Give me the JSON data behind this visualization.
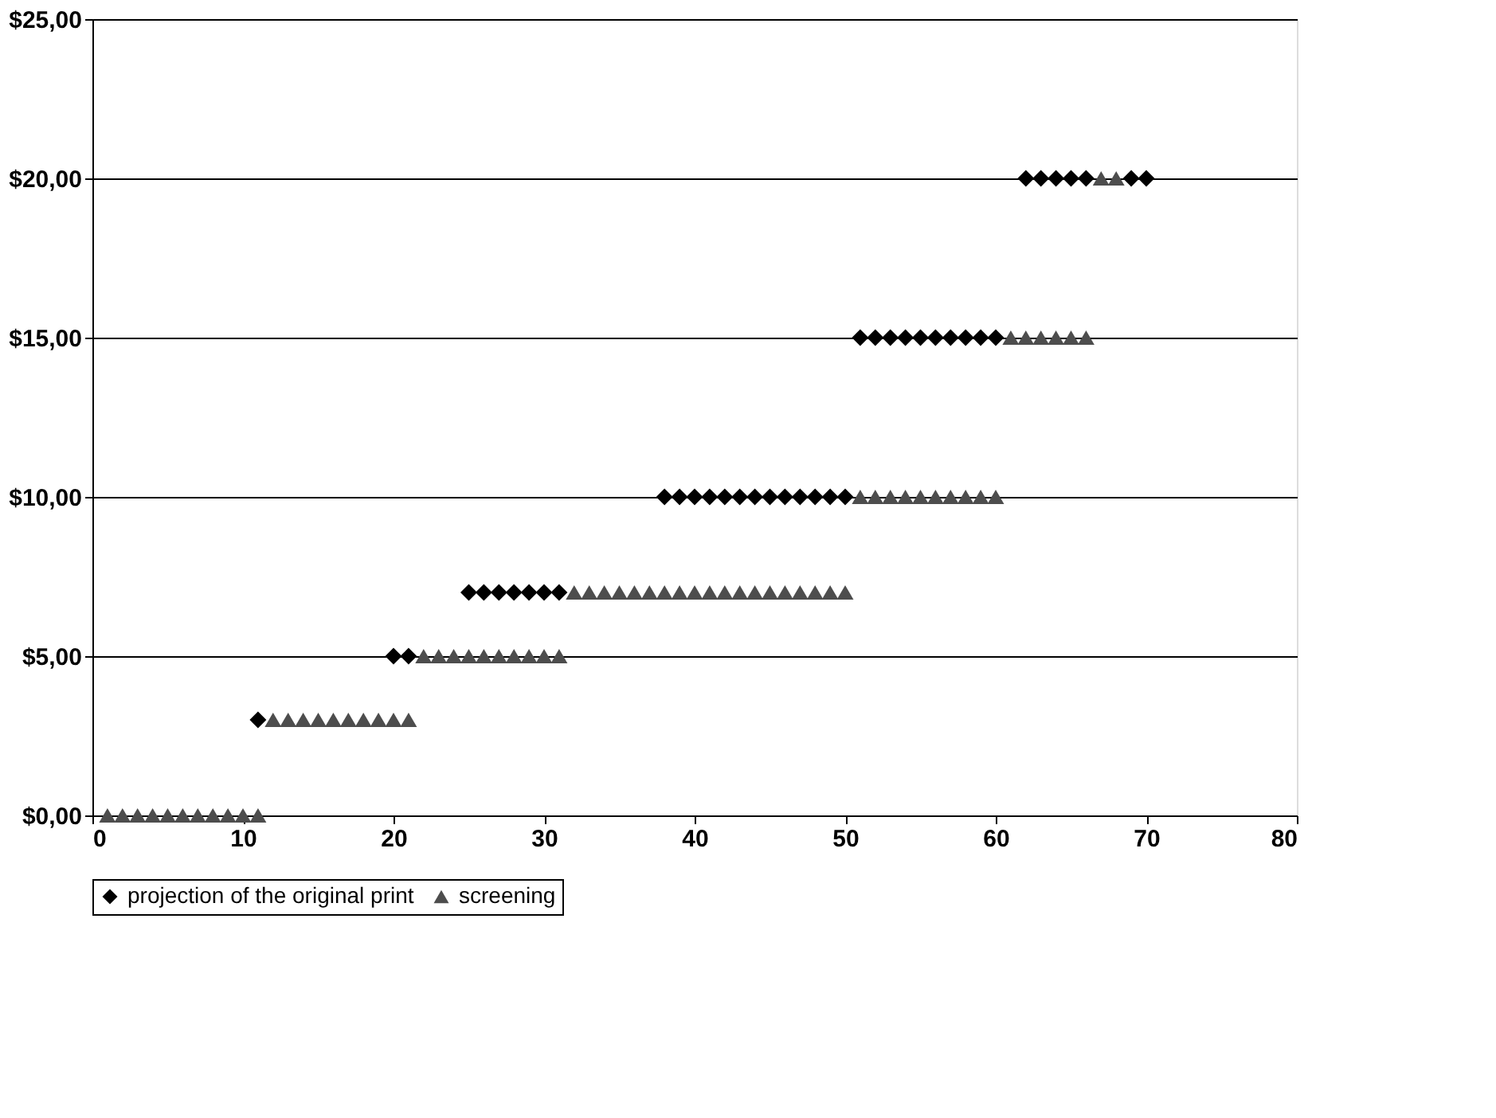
{
  "chart_data": {
    "type": "scatter",
    "xlim": [
      0,
      80
    ],
    "xticks": [
      0,
      10,
      20,
      30,
      40,
      50,
      60,
      70,
      80
    ],
    "ylim": [
      0,
      25
    ],
    "yticks": [
      {
        "value": 0,
        "label": "$0,00"
      },
      {
        "value": 5,
        "label": "$5,00"
      },
      {
        "value": 10,
        "label": "$10,00"
      },
      {
        "value": 15,
        "label": "$15,00"
      },
      {
        "value": 20,
        "label": "$20,00"
      },
      {
        "value": 25,
        "label": "$25,00"
      }
    ],
    "grid": "y",
    "legend": "bottom",
    "series": [
      {
        "name": "projection of the original print",
        "color": "#000000",
        "marker": "diamond",
        "x": [
          11,
          20,
          21,
          25,
          26,
          27,
          28,
          29,
          30,
          31,
          38,
          39,
          40,
          41,
          42,
          43,
          44,
          45,
          46,
          47,
          48,
          49,
          50,
          51,
          52,
          53,
          54,
          55,
          56,
          57,
          58,
          59,
          60,
          62,
          63,
          64,
          65,
          66,
          69,
          70
        ],
        "values": [
          3,
          5,
          5,
          7,
          7,
          7,
          7,
          7,
          7,
          7,
          10,
          10,
          10,
          10,
          10,
          10,
          10,
          10,
          10,
          10,
          10,
          10,
          10,
          15,
          15,
          15,
          15,
          15,
          15,
          15,
          15,
          15,
          15,
          20,
          20,
          20,
          20,
          20,
          20,
          20
        ]
      },
      {
        "name": "screening",
        "color": "#4d4d4d",
        "marker": "triangle",
        "x": [
          1,
          2,
          3,
          4,
          5,
          6,
          7,
          8,
          9,
          10,
          11,
          12,
          13,
          14,
          15,
          16,
          17,
          18,
          19,
          20,
          21,
          22,
          23,
          24,
          25,
          26,
          27,
          28,
          29,
          30,
          31,
          32,
          33,
          34,
          35,
          36,
          37,
          38,
          39,
          40,
          41,
          42,
          43,
          44,
          45,
          46,
          47,
          48,
          49,
          50,
          51,
          52,
          53,
          54,
          55,
          56,
          57,
          58,
          59,
          60,
          61,
          62,
          63,
          64,
          65,
          66,
          67,
          68
        ],
        "values": [
          0,
          0,
          0,
          0,
          0,
          0,
          0,
          0,
          0,
          0,
          0,
          3,
          3,
          3,
          3,
          3,
          3,
          3,
          3,
          3,
          3,
          5,
          5,
          5,
          5,
          5,
          5,
          5,
          5,
          5,
          5,
          7,
          7,
          7,
          7,
          7,
          7,
          7,
          7,
          7,
          7,
          7,
          7,
          7,
          7,
          7,
          7,
          7,
          7,
          7,
          10,
          10,
          10,
          10,
          10,
          10,
          10,
          10,
          10,
          10,
          15,
          15,
          15,
          15,
          15,
          15,
          20,
          20
        ]
      }
    ]
  }
}
